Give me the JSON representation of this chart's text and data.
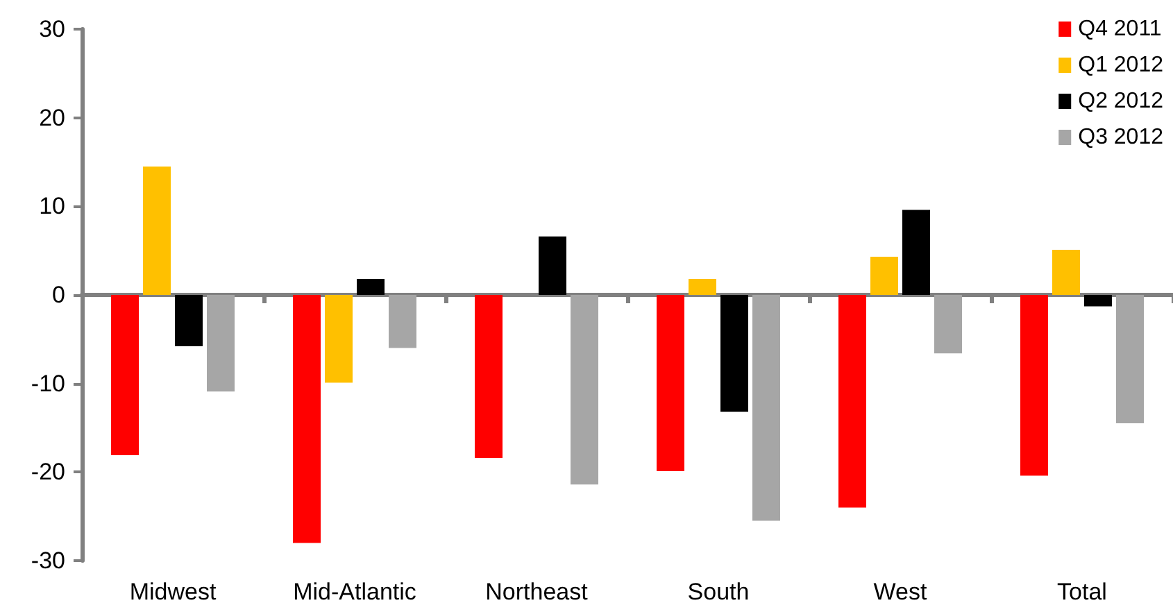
{
  "chart_data": {
    "type": "bar",
    "categories": [
      "Midwest",
      "Mid-Atlantic",
      "Northeast",
      "South",
      "West",
      "Total"
    ],
    "series": [
      {
        "name": "Q4 2011",
        "color": "#ff0000",
        "values": [
          -18.1,
          -28.0,
          -18.4,
          -19.9,
          -24.0,
          -20.4
        ]
      },
      {
        "name": "Q1 2012",
        "color": "#ffc000",
        "values": [
          14.5,
          -9.9,
          0,
          1.8,
          4.3,
          5.1
        ]
      },
      {
        "name": "Q2 2012",
        "color": "#000000",
        "values": [
          -5.8,
          1.8,
          6.6,
          -13.2,
          9.6,
          -1.3
        ]
      },
      {
        "name": "Q3 2012",
        "color": "#a6a6a6",
        "values": [
          -10.9,
          -6.0,
          -21.4,
          -25.5,
          -6.6,
          -14.5
        ]
      }
    ],
    "ylim": [
      -30,
      30
    ],
    "yticks": [
      -30,
      -20,
      -10,
      0,
      10,
      20,
      30
    ],
    "legend": "top right"
  }
}
